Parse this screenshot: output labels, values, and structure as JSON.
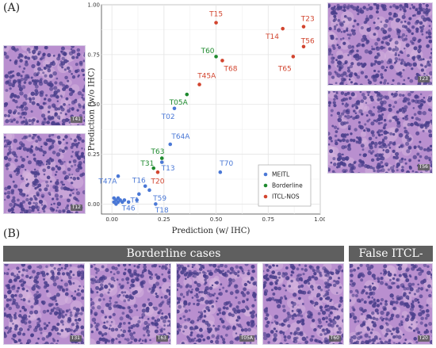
{
  "panel_a": {
    "label": "(A)",
    "tiles": [
      {
        "tag": "T41",
        "tone": "a"
      },
      {
        "tag": "T12",
        "tone": "b"
      },
      {
        "tag": "T23",
        "tone": "c"
      },
      {
        "tag": "T56",
        "tone": "d"
      }
    ]
  },
  "panel_b": {
    "label": "(B)",
    "header_borderline": "Borderline cases",
    "header_false": "False ITCL-NOS",
    "tiles": [
      {
        "tag": "T31",
        "tone": "a"
      },
      {
        "tag": "T63",
        "tone": "b"
      },
      {
        "tag": "T05A",
        "tone": "c"
      },
      {
        "tag": "T60",
        "tone": "d"
      },
      {
        "tag": "T20",
        "tone": "e"
      }
    ]
  },
  "colors": {
    "MEITL": "#4a78d6",
    "Borderline": "#1e8a2e",
    "ITCL-NOS": "#d2452f",
    "he_base": "#b98fcf",
    "he_nuclei": "#4b3f8c"
  },
  "chart_data": {
    "type": "scatter",
    "xlabel": "Prediction (w/ IHC)",
    "ylabel": "Prediction (w/o IHC)",
    "xlim": [
      -0.05,
      1.0
    ],
    "ylim": [
      -0.05,
      1.0
    ],
    "xticks": [
      "0.00",
      "0.25",
      "0.50",
      "0.75",
      "1.00"
    ],
    "yticks": [
      "0.00",
      "0.25",
      "0.50",
      "0.75",
      "1.00"
    ],
    "grid": true,
    "legend": {
      "placement": "bottom-right",
      "entries": [
        {
          "name": "MEITL",
          "group": "MEITL"
        },
        {
          "name": "Borderline",
          "group": "Borderline"
        },
        {
          "name": "ITCL-NOS",
          "group": "ITCL-NOS"
        }
      ]
    },
    "points": [
      {
        "label": "T15",
        "x": 0.5,
        "y": 0.91,
        "group": "ITCL-NOS",
        "lx": 0.0,
        "ly": 0.045
      },
      {
        "label": "T23",
        "x": 0.92,
        "y": 0.89,
        "group": "ITCL-NOS",
        "lx": 0.02,
        "ly": 0.04
      },
      {
        "label": "T14",
        "x": 0.82,
        "y": 0.88,
        "group": "ITCL-NOS",
        "lx": -0.05,
        "ly": -0.04
      },
      {
        "label": "T56",
        "x": 0.92,
        "y": 0.79,
        "group": "ITCL-NOS",
        "lx": 0.02,
        "ly": 0.03
      },
      {
        "label": "T60",
        "x": 0.5,
        "y": 0.74,
        "group": "Borderline",
        "lx": -0.04,
        "ly": 0.03
      },
      {
        "label": "T68",
        "x": 0.53,
        "y": 0.72,
        "group": "ITCL-NOS",
        "lx": 0.04,
        "ly": -0.04
      },
      {
        "label": "T65",
        "x": 0.87,
        "y": 0.74,
        "group": "ITCL-NOS",
        "lx": -0.04,
        "ly": -0.06
      },
      {
        "label": "T45A",
        "x": 0.42,
        "y": 0.6,
        "group": "ITCL-NOS",
        "lx": 0.035,
        "ly": 0.045
      },
      {
        "label": "T05A",
        "x": 0.36,
        "y": 0.55,
        "group": "Borderline",
        "lx": -0.04,
        "ly": -0.04
      },
      {
        "label": "T02",
        "x": 0.3,
        "y": 0.48,
        "group": "MEITL",
        "lx": -0.03,
        "ly": -0.04
      },
      {
        "label": "T64A",
        "x": 0.28,
        "y": 0.3,
        "group": "MEITL",
        "lx": 0.05,
        "ly": 0.04
      },
      {
        "label": "T63",
        "x": 0.24,
        "y": 0.23,
        "group": "Borderline",
        "lx": -0.02,
        "ly": 0.035
      },
      {
        "label": "T31",
        "x": 0.2,
        "y": 0.18,
        "group": "Borderline",
        "lx": -0.03,
        "ly": 0.025
      },
      {
        "label": "T13",
        "x": 0.24,
        "y": 0.21,
        "group": "MEITL",
        "lx": 0.03,
        "ly": -0.03
      },
      {
        "label": "T20",
        "x": 0.22,
        "y": 0.16,
        "group": "ITCL-NOS",
        "lx": 0.0,
        "ly": -0.045
      },
      {
        "label": "T70",
        "x": 0.52,
        "y": 0.16,
        "group": "MEITL",
        "lx": 0.03,
        "ly": 0.045
      },
      {
        "label": "T47A",
        "x": 0.03,
        "y": 0.14,
        "group": "MEITL",
        "lx": -0.05,
        "ly": -0.025
      },
      {
        "label": "T16",
        "x": 0.16,
        "y": 0.09,
        "group": "MEITL",
        "lx": -0.03,
        "ly": 0.03
      },
      {
        "label": "T59",
        "x": 0.18,
        "y": 0.07,
        "group": "MEITL",
        "lx": 0.05,
        "ly": -0.04
      },
      {
        "label": "T1",
        "x": 0.13,
        "y": 0.05,
        "group": "MEITL",
        "lx": -0.02,
        "ly": -0.03
      },
      {
        "label": "T46",
        "x": 0.12,
        "y": 0.02,
        "group": "MEITL",
        "lx": -0.04,
        "ly": -0.04
      },
      {
        "label": "T18",
        "x": 0.21,
        "y": 0.0,
        "group": "MEITL",
        "lx": 0.03,
        "ly": -0.03
      },
      {
        "label": "",
        "x": 0.01,
        "y": 0.01,
        "group": "MEITL"
      },
      {
        "label": "",
        "x": 0.02,
        "y": 0.02,
        "group": "MEITL"
      },
      {
        "label": "",
        "x": 0.03,
        "y": 0.01,
        "group": "MEITL"
      },
      {
        "label": "",
        "x": 0.04,
        "y": 0.02,
        "group": "MEITL"
      },
      {
        "label": "",
        "x": 0.02,
        "y": 0.0,
        "group": "MEITL"
      },
      {
        "label": "",
        "x": 0.05,
        "y": 0.01,
        "group": "MEITL"
      },
      {
        "label": "",
        "x": 0.01,
        "y": 0.03,
        "group": "MEITL"
      },
      {
        "label": "",
        "x": 0.06,
        "y": 0.02,
        "group": "MEITL"
      },
      {
        "label": "",
        "x": 0.03,
        "y": 0.03,
        "group": "MEITL"
      },
      {
        "label": "",
        "x": 0.08,
        "y": 0.01,
        "group": "MEITL"
      }
    ]
  }
}
